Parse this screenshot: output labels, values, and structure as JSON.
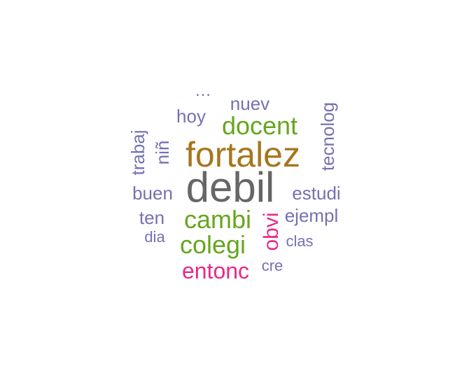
{
  "chart_data": {
    "type": "wordcloud",
    "title": "",
    "palette": {
      "gray": "#666666",
      "gold": "#A6761D",
      "green": "#66A61E",
      "magenta": "#E7298A",
      "purple": "#7570B3"
    },
    "words": [
      {
        "text": "debil",
        "weight": 60,
        "color": "#666666",
        "rotated": false
      },
      {
        "text": "fortalez",
        "weight": 50,
        "color": "#A6761D",
        "rotated": false
      },
      {
        "text": "docent",
        "weight": 36,
        "color": "#66A61E",
        "rotated": false
      },
      {
        "text": "cambi",
        "weight": 36,
        "color": "#66A61E",
        "rotated": false
      },
      {
        "text": "colegi",
        "weight": 36,
        "color": "#66A61E",
        "rotated": false
      },
      {
        "text": "entonc",
        "weight": 32,
        "color": "#E7298A",
        "rotated": false
      },
      {
        "text": "obvi",
        "weight": 30,
        "color": "#E7298A",
        "rotated": true
      },
      {
        "text": "nuev",
        "weight": 26,
        "color": "#7570B3",
        "rotated": false
      },
      {
        "text": "hoy",
        "weight": 26,
        "color": "#7570B3",
        "rotated": false
      },
      {
        "text": "trabaj",
        "weight": 26,
        "color": "#7570B3",
        "rotated": true
      },
      {
        "text": "niñ",
        "weight": 26,
        "color": "#7570B3",
        "rotated": true
      },
      {
        "text": "tecnolog",
        "weight": 26,
        "color": "#7570B3",
        "rotated": true
      },
      {
        "text": "buen",
        "weight": 26,
        "color": "#7570B3",
        "rotated": false
      },
      {
        "text": "estudi",
        "weight": 26,
        "color": "#7570B3",
        "rotated": false
      },
      {
        "text": "ejempl",
        "weight": 26,
        "color": "#7570B3",
        "rotated": false
      },
      {
        "text": "ten",
        "weight": 26,
        "color": "#7570B3",
        "rotated": false
      },
      {
        "text": "dia",
        "weight": 22,
        "color": "#7570B3",
        "rotated": false
      },
      {
        "text": "clas",
        "weight": 22,
        "color": "#7570B3",
        "rotated": false
      },
      {
        "text": "cre",
        "weight": 22,
        "color": "#7570B3",
        "rotated": false
      },
      {
        "text": "…",
        "weight": 24,
        "color": "#7570B3",
        "rotated": false
      }
    ]
  }
}
